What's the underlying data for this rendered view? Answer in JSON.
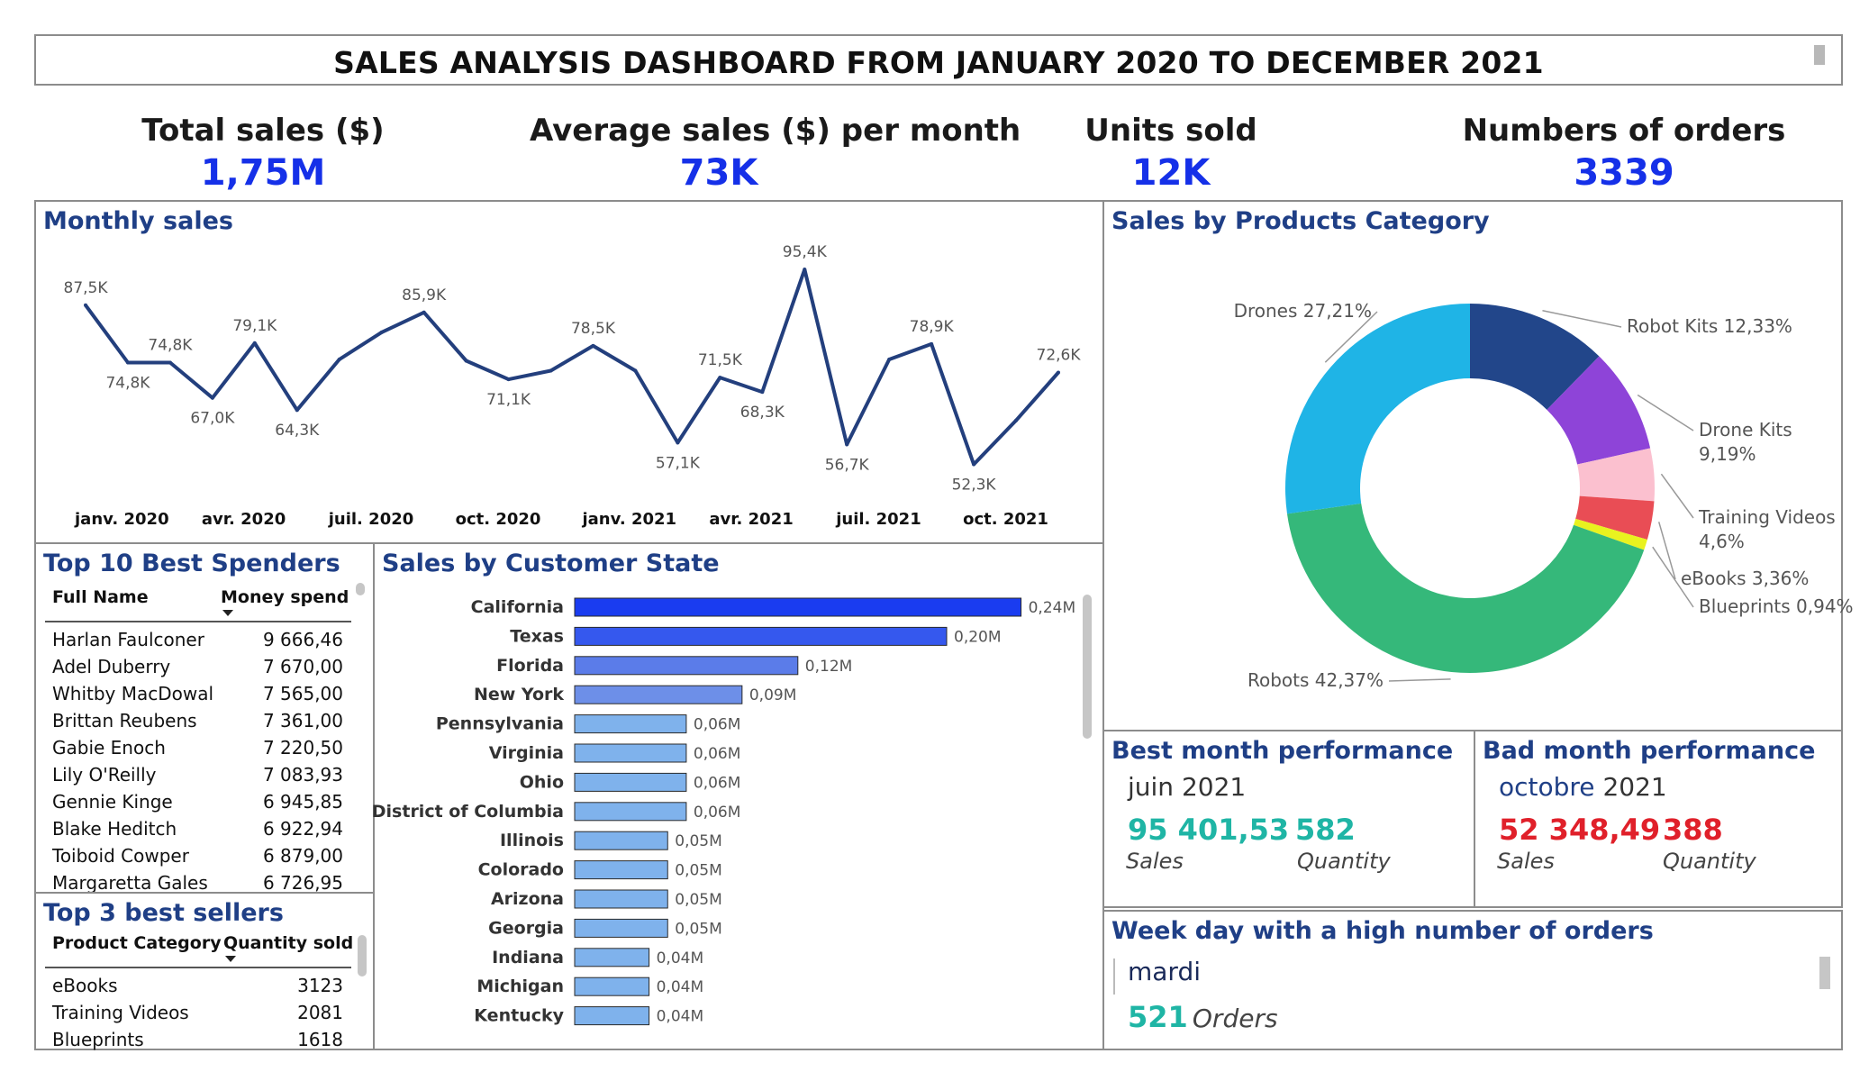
{
  "title": "SALES ANALYSIS DASHBOARD FROM JANUARY 2020 TO DECEMBER 2021",
  "kpis": {
    "total_sales": {
      "label": "Total sales ($)",
      "value": "1,75M"
    },
    "avg_sales": {
      "label": "Average sales ($) per month",
      "value": "73K"
    },
    "units_sold": {
      "label": "Units sold",
      "value": "12K"
    },
    "orders": {
      "label": "Numbers of orders",
      "value": "3339"
    }
  },
  "colors": {
    "accent_blue": "#1530e8",
    "title_blue": "#1f3f86",
    "line": "#233f7d",
    "good": "#1fb5a5",
    "bad": "#e0202a"
  },
  "monthly": {
    "title": "Monthly sales"
  },
  "category": {
    "title": "Sales by Products Category"
  },
  "states": {
    "title": "Sales by Customer State"
  },
  "spenders": {
    "title": "Top 10 Best Spenders",
    "col_name": "Full Name",
    "col_value": "Money spend",
    "rows": [
      {
        "name": "Harlan Faulconer",
        "value": "9 666,46"
      },
      {
        "name": "Adel Duberry",
        "value": "7 670,00"
      },
      {
        "name": "Whitby MacDowal",
        "value": "7 565,00"
      },
      {
        "name": "Brittan Reubens",
        "value": "7 361,00"
      },
      {
        "name": "Gabie Enoch",
        "value": "7 220,50"
      },
      {
        "name": "Lily O'Reilly",
        "value": "7 083,93"
      },
      {
        "name": "Gennie Kinge",
        "value": "6 945,85"
      },
      {
        "name": "Blake Heditch",
        "value": "6 922,94"
      },
      {
        "name": "Toiboid Cowper",
        "value": "6 879,00"
      },
      {
        "name": "Margaretta Gales",
        "value": "6 726,95"
      }
    ]
  },
  "sellers": {
    "title": "Top 3 best sellers",
    "col_name": "Product Category",
    "col_value": "Quantity sold",
    "rows": [
      {
        "name": "eBooks",
        "value": "3123"
      },
      {
        "name": "Training Videos",
        "value": "2081"
      },
      {
        "name": "Blueprints",
        "value": "1618"
      }
    ]
  },
  "best_month": {
    "title": "Best month performance",
    "month": "juin",
    "year": "2021",
    "sales": "95 401,53",
    "quantity": "582",
    "sales_label": "Sales",
    "quantity_label": "Quantity"
  },
  "bad_month": {
    "title": "Bad month performance",
    "month": "octobre",
    "year": "2021",
    "sales": "52 348,49",
    "quantity": "388",
    "sales_label": "Sales",
    "quantity_label": "Quantity"
  },
  "weekday": {
    "title": "Week day with a high number of orders",
    "day": "mardi",
    "orders": "521",
    "orders_label": "Orders"
  },
  "chart_data": [
    {
      "type": "line",
      "title": "Monthly sales",
      "x_tick_labels": [
        "janv. 2020",
        "avr. 2020",
        "juil. 2020",
        "oct. 2020",
        "janv. 2021",
        "avr. 2021",
        "juil. 2021",
        "oct. 2021"
      ],
      "values": [
        87.5,
        74.8,
        74.8,
        67.0,
        79.1,
        64.3,
        75.5,
        81.5,
        85.9,
        75.2,
        71.1,
        73.0,
        78.5,
        73.0,
        57.1,
        71.5,
        68.3,
        95.4,
        56.7,
        75.5,
        78.9,
        52.3,
        62.0,
        72.6
      ],
      "labels": [
        "87,5K",
        "74,8K",
        "74,8K",
        "67,0K",
        "79,1K",
        "64,3K",
        "",
        "",
        "85,9K",
        "",
        "71,1K",
        "",
        "78,5K",
        "",
        "57,1K",
        "71,5K",
        "68,3K",
        "95,4K",
        "56,7K",
        "",
        "78,9K",
        "52,3K",
        "",
        "72,6K"
      ],
      "unit": "K$",
      "ylim": [
        50,
        100
      ]
    },
    {
      "type": "pie",
      "title": "Sales by Products Category",
      "slices": [
        {
          "label": "Robot Kits 12,33%",
          "value": 12.33,
          "color": "#22468a"
        },
        {
          "label": "Drone Kits",
          "label2": "9,19%",
          "value": 9.19,
          "color": "#8e44d8"
        },
        {
          "label": "Training Videos",
          "label2": "4,6%",
          "value": 4.6,
          "color": "#fbc0cf"
        },
        {
          "label": "eBooks 3,36%",
          "value": 3.36,
          "color": "#e94d55"
        },
        {
          "label": "Blueprints 0,94%",
          "value": 0.94,
          "color": "#e9f21f"
        },
        {
          "label": "Robots 42,37%",
          "value": 42.37,
          "color": "#35b87a"
        },
        {
          "label": "Drones 27,21%",
          "value": 27.21,
          "color": "#1fb4e6"
        }
      ]
    },
    {
      "type": "bar",
      "orientation": "horizontal",
      "title": "Sales by Customer State",
      "categories": [
        "California",
        "Texas",
        "Florida",
        "New York",
        "Pennsylvania",
        "Virginia",
        "Ohio",
        "District of Columbia",
        "Illinois",
        "Colorado",
        "Arizona",
        "Georgia",
        "Indiana",
        "Michigan",
        "Kentucky"
      ],
      "values": [
        0.24,
        0.2,
        0.12,
        0.09,
        0.06,
        0.06,
        0.06,
        0.06,
        0.05,
        0.05,
        0.05,
        0.05,
        0.04,
        0.04,
        0.04
      ],
      "value_labels": [
        "0,24M",
        "0,20M",
        "0,12M",
        "0,09M",
        "0,06M",
        "0,06M",
        "0,06M",
        "0,06M",
        "0,05M",
        "0,05M",
        "0,05M",
        "0,05M",
        "0,04M",
        "0,04M",
        "0,04M"
      ],
      "unit": "M$"
    }
  ]
}
